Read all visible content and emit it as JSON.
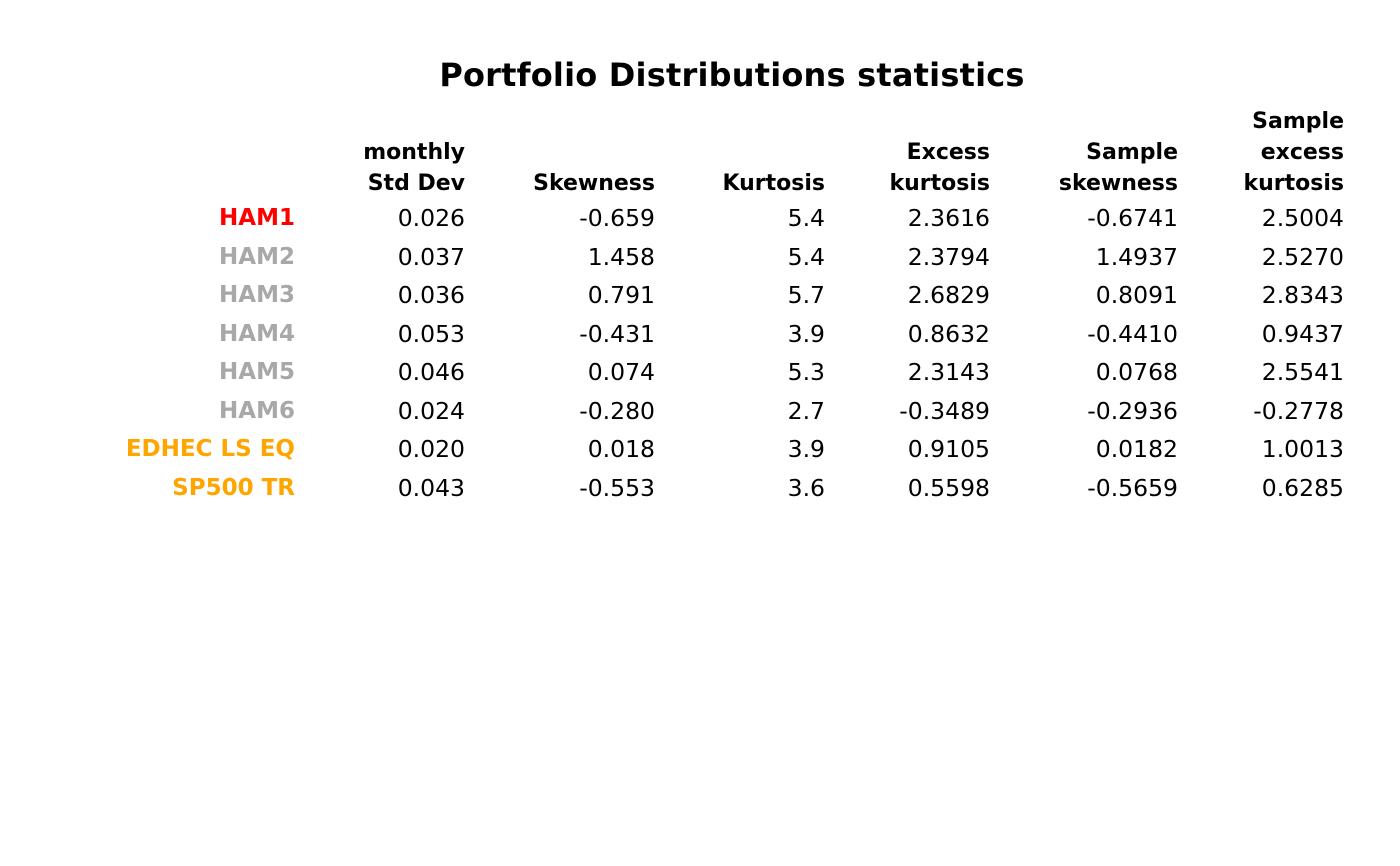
{
  "title": "Portfolio Distributions statistics",
  "colors": {
    "highlight_red": "#ff0000",
    "muted_gray": "#a8a8a8",
    "benchmark_orange": "#ffa500",
    "text_black": "#000000",
    "background": "#ffffff"
  },
  "chart_data": {
    "type": "table",
    "title": "Portfolio Distributions statistics",
    "legend_position": "none",
    "grid": false,
    "columns": [
      {
        "id": "monthly-std-dev",
        "label_lines": [
          "monthly",
          "Std Dev"
        ]
      },
      {
        "id": "skewness",
        "label_lines": [
          "Skewness"
        ]
      },
      {
        "id": "kurtosis",
        "label_lines": [
          "Kurtosis"
        ]
      },
      {
        "id": "excess-kurtosis",
        "label_lines": [
          "Excess",
          "kurtosis"
        ]
      },
      {
        "id": "sample-skewness",
        "label_lines": [
          "Sample",
          "skewness"
        ]
      },
      {
        "id": "sample-excess-kurtosis",
        "label_lines": [
          "Sample",
          "excess",
          "kurtosis"
        ]
      }
    ],
    "rows": [
      {
        "label": "HAM1",
        "color": "#ff0000",
        "values": [
          "0.026",
          "-0.659",
          "5.4",
          "2.3616",
          "-0.6741",
          "2.5004"
        ]
      },
      {
        "label": "HAM2",
        "color": "#a8a8a8",
        "values": [
          "0.037",
          "1.458",
          "5.4",
          "2.3794",
          "1.4937",
          "2.5270"
        ]
      },
      {
        "label": "HAM3",
        "color": "#a8a8a8",
        "values": [
          "0.036",
          "0.791",
          "5.7",
          "2.6829",
          "0.8091",
          "2.8343"
        ]
      },
      {
        "label": "HAM4",
        "color": "#a8a8a8",
        "values": [
          "0.053",
          "-0.431",
          "3.9",
          "0.8632",
          "-0.4410",
          "0.9437"
        ]
      },
      {
        "label": "HAM5",
        "color": "#a8a8a8",
        "values": [
          "0.046",
          "0.074",
          "5.3",
          "2.3143",
          "0.0768",
          "2.5541"
        ]
      },
      {
        "label": "HAM6",
        "color": "#a8a8a8",
        "values": [
          "0.024",
          "-0.280",
          "2.7",
          "-0.3489",
          "-0.2936",
          "-0.2778"
        ]
      },
      {
        "label": "EDHEC LS EQ",
        "color": "#ffa500",
        "values": [
          "0.020",
          "0.018",
          "3.9",
          "0.9105",
          "0.0182",
          "1.0013"
        ]
      },
      {
        "label": "SP500 TR",
        "color": "#ffa500",
        "values": [
          "0.043",
          "-0.553",
          "3.6",
          "0.5598",
          "-0.5659",
          "0.6285"
        ]
      }
    ]
  }
}
